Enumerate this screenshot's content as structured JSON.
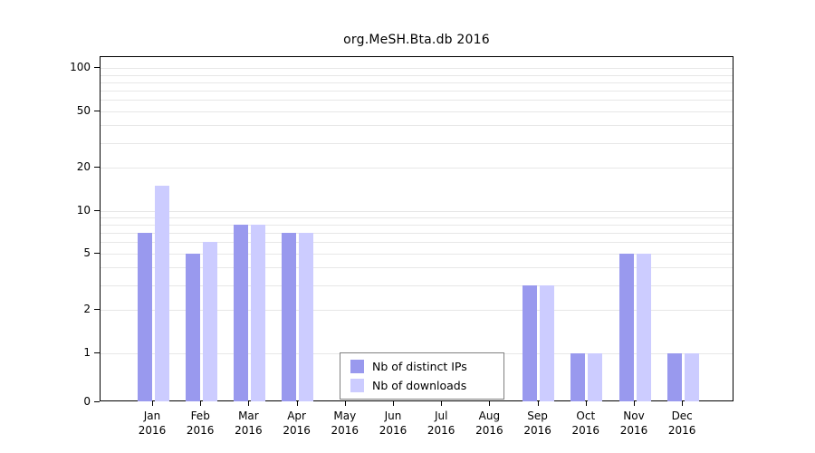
{
  "chart_data": {
    "type": "bar",
    "title": "org.MeSH.Bta.db 2016",
    "xlabel": "",
    "ylabel": "",
    "scale": "log",
    "grid": "minor-horizontal",
    "legend_position": "bottom-center-inside",
    "yticks": [
      0,
      1,
      2,
      5,
      10,
      20,
      50,
      100
    ],
    "ylim": [
      0,
      100
    ],
    "categories": [
      "Jan 2016",
      "Feb 2016",
      "Mar 2016",
      "Apr 2016",
      "May 2016",
      "Jun 2016",
      "Jul 2016",
      "Aug 2016",
      "Sep 2016",
      "Oct 2016",
      "Nov 2016",
      "Dec 2016"
    ],
    "series": [
      {
        "name": "Nb of distinct IPs",
        "color": "#9999ee",
        "values": [
          7,
          5,
          8,
          7,
          0,
          0,
          0,
          0,
          3,
          1,
          5,
          1
        ]
      },
      {
        "name": "Nb of downloads",
        "color": "#ccccff",
        "values": [
          15,
          6,
          8,
          7,
          0,
          0,
          0,
          0,
          3,
          1,
          5,
          1
        ]
      }
    ]
  }
}
